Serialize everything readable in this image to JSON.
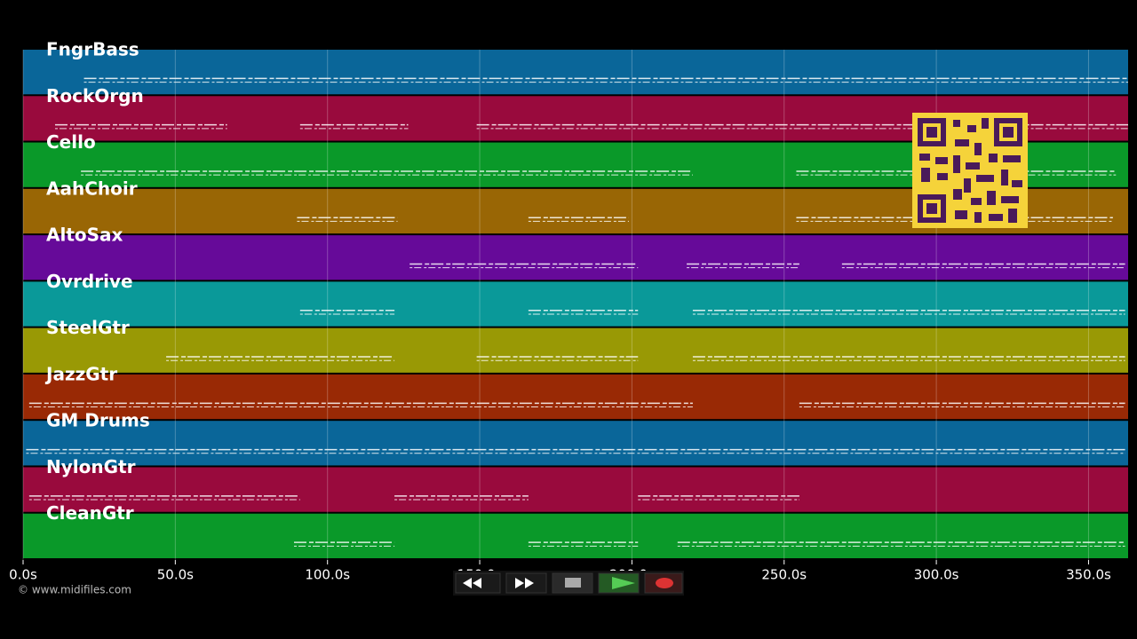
{
  "chart_data": {
    "type": "timeline",
    "xlim": [
      0,
      363
    ],
    "xticks": [
      {
        "value": 0,
        "label": "0.0s"
      },
      {
        "value": 50,
        "label": "50.0s"
      },
      {
        "value": 100,
        "label": "100.0s"
      },
      {
        "value": 150,
        "label": "150.0s"
      },
      {
        "value": 200,
        "label": "200.0s"
      },
      {
        "value": 250,
        "label": "250.0s"
      },
      {
        "value": 300,
        "label": "300.0s"
      },
      {
        "value": 350,
        "label": "350.0s"
      }
    ],
    "grid": true,
    "tracks": [
      {
        "name": "FngrBass",
        "color": "#0a6699",
        "segments": [
          [
            20,
            363
          ]
        ]
      },
      {
        "name": "RockOrgn",
        "color": "#990a3d",
        "segments": [
          [
            10.5,
            67
          ],
          [
            91,
            126.5
          ],
          [
            149,
            363
          ]
        ]
      },
      {
        "name": "Cello",
        "color": "#0a9929",
        "segments": [
          [
            19,
            220
          ],
          [
            254,
            359
          ]
        ]
      },
      {
        "name": "AahChoir",
        "color": "#996605",
        "segments": [
          [
            90,
            123
          ],
          [
            166,
            199
          ],
          [
            254,
            358
          ]
        ]
      },
      {
        "name": "AltoSax",
        "color": "#660a99",
        "segments": [
          [
            127,
            202
          ],
          [
            218,
            255
          ],
          [
            269,
            362
          ]
        ]
      },
      {
        "name": "Ovrdrive",
        "color": "#0a9999",
        "segments": [
          [
            91,
            122
          ],
          [
            166,
            202
          ],
          [
            220,
            362
          ]
        ]
      },
      {
        "name": "SteelGtr",
        "color": "#999905",
        "segments": [
          [
            47,
            122
          ],
          [
            149,
            202
          ],
          [
            220,
            362
          ]
        ]
      },
      {
        "name": "JazzGtr",
        "color": "#992905",
        "segments": [
          [
            2,
            220
          ],
          [
            255,
            362
          ]
        ]
      },
      {
        "name": "GM Drums",
        "color": "#0a6699",
        "segments": [
          [
            1,
            362
          ]
        ]
      },
      {
        "name": "NylonGtr",
        "color": "#990a3d",
        "segments": [
          [
            2,
            91
          ],
          [
            122,
            166
          ],
          [
            202,
            255
          ]
        ]
      },
      {
        "name": "CleanGtr",
        "color": "#0a9929",
        "segments": [
          [
            89,
            122
          ],
          [
            166,
            202
          ],
          [
            215,
            362
          ]
        ]
      }
    ]
  },
  "footer": {
    "copyright": "© www.midifiles.com"
  }
}
